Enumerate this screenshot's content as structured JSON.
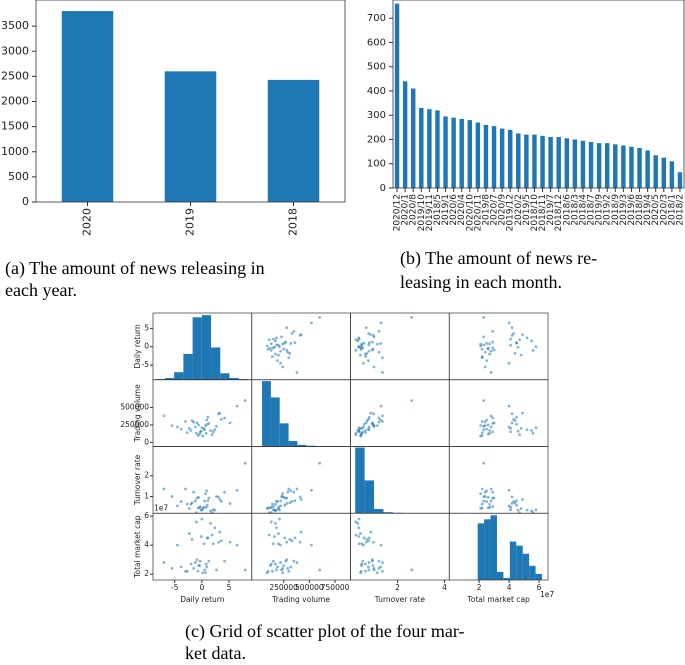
{
  "chart_data": [
    {
      "type": "bar",
      "categories": [
        "2020",
        "2019",
        "2018"
      ],
      "values": [
        3800,
        2600,
        2430
      ],
      "color": "#1f77b4",
      "ylim": [
        0,
        4020
      ],
      "yticks": [
        0,
        500,
        1000,
        1500,
        2000,
        2500,
        3000,
        3500
      ],
      "caption": [
        "(a) The amount of news releasing in",
        "each year."
      ]
    },
    {
      "type": "bar",
      "categories": [
        "2020/12",
        "2020/1",
        "2020/8",
        "2019/10",
        "2019/11",
        "2018/5",
        "2019/1",
        "2020/6",
        "2020/4",
        "2020/10",
        "2020/11",
        "2019/8",
        "2020/7",
        "2020/9",
        "2019/12",
        "2020/2",
        "2019/5",
        "2018/10",
        "2018/11",
        "2019/7",
        "2018/12",
        "2018/6",
        "2018/3",
        "2018/4",
        "2018/7",
        "2019/9",
        "2019/2",
        "2018/9",
        "2019/3",
        "2019/6",
        "2018/8",
        "2019/4",
        "2020/5",
        "2020/3",
        "2018/1",
        "2018/2"
      ],
      "values": [
        760,
        440,
        410,
        330,
        325,
        320,
        295,
        290,
        285,
        280,
        270,
        260,
        255,
        245,
        240,
        225,
        220,
        220,
        215,
        210,
        210,
        205,
        200,
        195,
        190,
        185,
        185,
        180,
        175,
        170,
        165,
        155,
        135,
        125,
        110,
        65
      ],
      "color": "#1f77b4",
      "ylim": [
        0,
        775
      ],
      "yticks": [
        0,
        100,
        200,
        300,
        400,
        500,
        600,
        700
      ],
      "caption": [
        "(b) The amount of news re-",
        "leasing in each month."
      ]
    },
    {
      "type": "scatter_matrix",
      "color": "#1f77b4",
      "variables": [
        {
          "name": "Daily return",
          "xlim": [
            -9,
            9.2
          ],
          "ylim": [
            -9,
            9.2
          ],
          "xticks": [
            -5,
            0,
            5
          ],
          "yticks": [
            -5,
            0,
            5
          ],
          "hist_bins": [
            -8.5,
            -6.8,
            -5.1,
            -3.4,
            -1.7,
            0,
            1.7,
            3.4,
            5.1,
            6.8,
            8.5
          ],
          "hist_counts": [
            3,
            8,
            35,
            120,
            290,
            300,
            150,
            30,
            8,
            3
          ],
          "hist_ylim": [
            0,
            310
          ],
          "values": [
            0.5,
            -1.2,
            2.1,
            -3.0,
            1.0,
            -0.4,
            4.2,
            -2.3,
            0.2,
            3.1,
            -5.5,
            1.6,
            -0.9,
            0.8,
            -1.8,
            2.7,
            6.5,
            -0.1,
            -3.8,
            1.3,
            0.0,
            -2.7,
            3.6,
            -0.6,
            1.9,
            -7.0,
            0.4,
            -1.5,
            2.4,
            8.0,
            -0.3,
            1.1,
            -4.5,
            0.7,
            -2.0,
            3.3,
            -1.0,
            0.9,
            5.2,
            -0.7
          ]
        },
        {
          "name": "Trading volume",
          "xlim": [
            -60000,
            900000
          ],
          "ylim": [
            -60000,
            900000
          ],
          "xticks": [
            250000,
            500000,
            750000
          ],
          "yticks": [
            0,
            250000,
            500000
          ],
          "hist_bins": [
            40000,
            126000,
            212000,
            298000,
            384000,
            470000,
            556000,
            642000,
            728000,
            814000,
            900000
          ],
          "hist_counts": [
            480,
            360,
            170,
            40,
            12,
            6,
            3,
            2,
            1,
            1
          ],
          "hist_ylim": [
            0,
            490
          ],
          "values": [
            180000,
            220000,
            150000,
            300000,
            260000,
            120000,
            350000,
            200000,
            90000,
            410000,
            240000,
            170000,
            280000,
            130000,
            310000,
            230000,
            520000,
            160000,
            190000,
            270000,
            210000,
            140000,
            330000,
            250000,
            110000,
            380000,
            200000,
            290000,
            180000,
            600000,
            150000,
            360000,
            220000,
            240000,
            170000,
            420000,
            130000,
            320000,
            280000,
            100000
          ]
        },
        {
          "name": "Turnover rate",
          "xlim": [
            0,
            4.2
          ],
          "ylim": [
            0.2,
            3.4
          ],
          "xticks": [
            2,
            4
          ],
          "yticks": [
            1,
            2
          ],
          "hist_bins": [
            0.2,
            0.6,
            1.0,
            1.4,
            1.8,
            2.2,
            2.6,
            3.0,
            3.4,
            3.8,
            4.2
          ],
          "hist_counts": [
            620,
            310,
            40,
            10,
            4,
            2,
            1,
            0,
            0,
            1
          ],
          "hist_ylim": [
            0,
            630
          ],
          "values": [
            0.78,
            0.79,
            0.37,
            1.36,
            0.58,
            0.46,
            1.21,
            0.42,
            0.43,
            0.98,
            1.0,
            0.31,
            0.93,
            0.48,
            0.7,
            1.0,
            1.3,
            0.35,
            0.76,
            0.93,
            0.36,
            0.64,
            0.77,
            0.96,
            0.23,
            1.36,
            0.49,
            1.21,
            0.35,
            2.6,
            0.52,
            0.8,
            0.55,
            1.14,
            0.63,
            0.86,
            0.23,
            1.28,
            0.67,
            0.45
          ]
        },
        {
          "name": "Total market cap",
          "offset_label": "1e7",
          "xlim": [
            0,
            6.6
          ],
          "ylim": [
            1.6,
            6.2
          ],
          "xticks": [
            2,
            4,
            6
          ],
          "yticks": [
            2,
            4,
            6
          ],
          "hist_bins": [
            1.9,
            2.33,
            2.76,
            3.19,
            3.62,
            4.05,
            4.48,
            4.91,
            5.34,
            5.77,
            6.2
          ],
          "hist_counts": [
            280,
            300,
            320,
            40,
            10,
            190,
            170,
            130,
            70,
            30
          ],
          "hist_ylim": [
            0,
            330
          ],
          "values": [
            2.3,
            2.8,
            4.1,
            2.2,
            4.5,
            2.6,
            2.9,
            4.8,
            2.1,
            4.2,
            2.4,
            5.5,
            3.0,
            2.7,
            4.4,
            2.3,
            4.0,
            4.6,
            2.5,
            2.9,
            5.8,
            2.2,
            4.3,
            2.6,
            4.7,
            2.8,
            4.1,
            2.4,
            5.2,
            2.3,
            2.9,
            4.5,
            4.0,
            2.1,
            2.7,
            4.9,
            5.6,
            2.5,
            4.2,
            2.2
          ]
        }
      ],
      "caption": [
        "(c) Grid of scatter plot of the four mar-",
        "ket data."
      ]
    }
  ]
}
